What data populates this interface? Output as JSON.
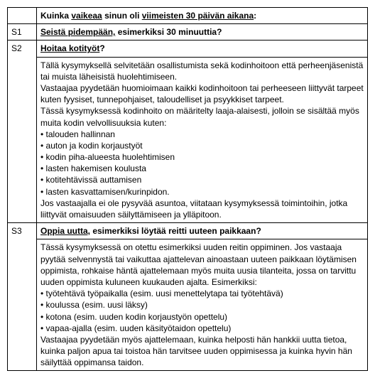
{
  "header": {
    "prefix": "Kuinka ",
    "u1": "vaikeaa",
    "mid": " sinun oli ",
    "u2": "viimeisten 30 päivän aikana",
    "colon": ":"
  },
  "rows": {
    "s1": {
      "code": "S1",
      "q_bu": "Seistä pidempään,",
      "q_b": " esimerkiksi 30 minuuttia?"
    },
    "s2": {
      "code": "S2",
      "q_bu": "Hoitaa kotityöt",
      "q_b": "?",
      "p1": "Tällä kysymyksellä selvitetään osallistumista sekä kodinhoitoon että perheenjäsenistä tai muista läheisistä huolehtimiseen.",
      "p2": "Vastaajaa pyydetään huomioimaan kaikki kodinhoitoon tai perheeseen liittyvät tarpeet kuten fyysiset, tunnepohjaiset, taloudelliset ja psyykkiset tarpeet.",
      "p3": "Tässä kysymyksessä kodinhoito on määritelty laaja-alaisesti, jolloin se sisältää myös muita kodin velvollisuuksia kuten:",
      "b1": "talouden hallinnan",
      "b2": "auton ja kodin korjaustyöt",
      "b3": "kodin piha-alueesta huolehtimisen",
      "b4": "lasten hakemisen koulusta",
      "b5": "kotitehtävissä auttamisen",
      "b6": "lasten kasvattamisen/kurinpidon.",
      "p4": "Jos vastaajalla ei ole pysyvää asuntoa, viitataan kysymyksessä toimintoihin, jotka liittyvät omaisuuden säilyttämiseen ja ylläpitoon."
    },
    "s3": {
      "code": "S3",
      "q_bu": "Oppia uutta,",
      "q_b": " esimerkiksi löytää reitti uuteen paikkaan?",
      "p1": "Tässä kysymyksessä on otettu esimerkiksi uuden reitin oppiminen. Jos vastaaja pyytää selvennystä tai vaikuttaa ajattelevan ainoastaan uuteen paikkaan löytämisen oppimista, rohkaise häntä ajattelemaan myös muita uusia tilanteita, jossa on tarvittu uuden oppimista kuluneen kuukauden ajalta. Esimerkiksi:",
      "b1": "työtehtävä työpaikalla (esim. uusi menettelytapa tai työtehtävä)",
      "b2": "koulussa (esim. uusi läksy)",
      "b3": "kotona (esim. uuden kodin korjaustyön opettelu)",
      "b4": "vapaa-ajalla (esim. uuden käsityötaidon opettelu)",
      "p2": "Vastaajaa pyydetään myös ajattelemaan, kuinka helposti hän hankkii uutta tietoa, kuinka paljon apua tai toistoa hän tarvitsee uuden oppimisessa ja kuinka hyvin hän säilyttää oppimansa taidon."
    }
  }
}
